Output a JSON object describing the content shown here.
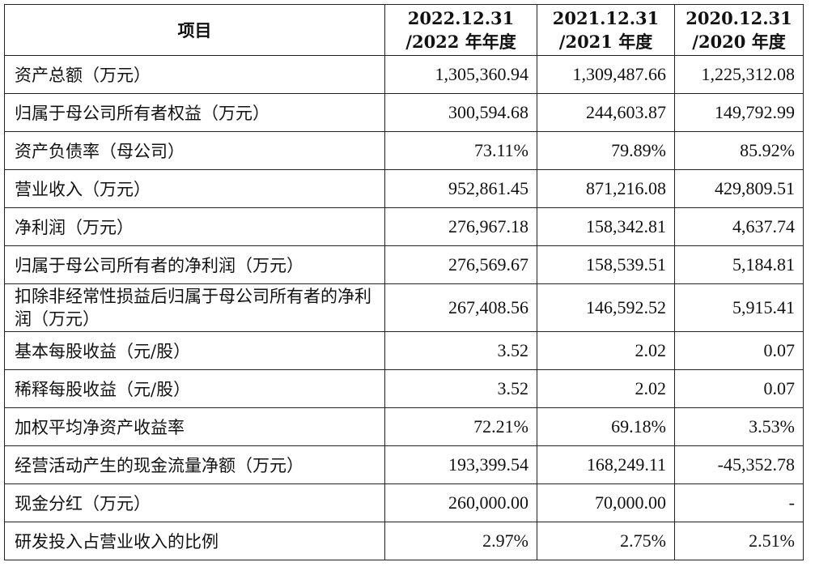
{
  "header": {
    "item": "项目",
    "columns": [
      {
        "line1": "2022.12.31",
        "line2": "/2022 年年度"
      },
      {
        "line1": "2021.12.31",
        "line2": "/2021 年度"
      },
      {
        "line1": "2020.12.31",
        "line2": "/2020 年度"
      }
    ]
  },
  "rows": [
    {
      "label": "资产总额（万元）",
      "values": [
        "1,305,360.94",
        "1,309,487.66",
        "1,225,312.08"
      ]
    },
    {
      "label": "归属于母公司所有者权益（万元）",
      "values": [
        "300,594.68",
        "244,603.87",
        "149,792.99"
      ]
    },
    {
      "label": "资产负债率（母公司）",
      "values": [
        "73.11%",
        "79.89%",
        "85.92%"
      ]
    },
    {
      "label": "营业收入（万元）",
      "values": [
        "952,861.45",
        "871,216.08",
        "429,809.51"
      ]
    },
    {
      "label": "净利润（万元）",
      "values": [
        "276,967.18",
        "158,342.81",
        "4,637.74"
      ]
    },
    {
      "label": "归属于母公司所有者的净利润（万元）",
      "values": [
        "276,569.67",
        "158,539.51",
        "5,184.81"
      ]
    },
    {
      "label": "扣除非经常性损益后归属于母公司所有者的净利润（万元）",
      "values": [
        "267,408.56",
        "146,592.52",
        "5,915.41"
      ]
    },
    {
      "label": "基本每股收益（元/股）",
      "values": [
        "3.52",
        "2.02",
        "0.07"
      ]
    },
    {
      "label": "稀释每股收益（元/股）",
      "values": [
        "3.52",
        "2.02",
        "0.07"
      ]
    },
    {
      "label": "加权平均净资产收益率",
      "values": [
        "72.21%",
        "69.18%",
        "3.53%"
      ]
    },
    {
      "label": "经营活动产生的现金流量净额（万元）",
      "values": [
        "193,399.54",
        "168,249.11",
        "-45,352.78"
      ]
    },
    {
      "label": "现金分红（万元）",
      "values": [
        "260,000.00",
        "70,000.00",
        "-"
      ]
    },
    {
      "label": "研发投入占营业收入的比例",
      "values": [
        "2.97%",
        "2.75%",
        "2.51%"
      ]
    }
  ]
}
